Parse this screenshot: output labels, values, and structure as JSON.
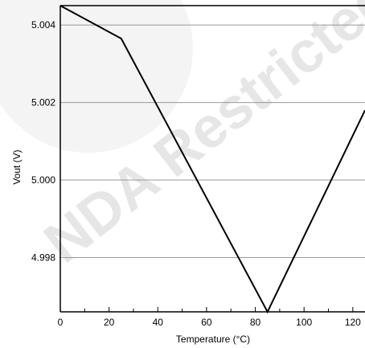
{
  "watermark": {
    "text": "NDA Restricted"
  },
  "chart_data": {
    "type": "line",
    "xlabel": "Temperature (°C)",
    "ylabel": "Vout (V)",
    "xlim": [
      0,
      125
    ],
    "ylim": [
      4.9966,
      5.0045
    ],
    "x_ticks": [
      0,
      20,
      40,
      60,
      80,
      100,
      120
    ],
    "x_tick_labels": [
      "0",
      "20",
      "40",
      "60",
      "80",
      "100",
      "120"
    ],
    "y_ticks": [
      4.998,
      5.0,
      5.002,
      5.004
    ],
    "y_tick_labels": [
      "4.998",
      "5.000",
      "5.002",
      "5.004"
    ],
    "grid": {
      "horizontal": true,
      "vertical": false
    },
    "series": [
      {
        "x": [
          0,
          25,
          85,
          125
        ],
        "y": [
          5.0045,
          5.00365,
          4.9966,
          5.0018
        ]
      }
    ]
  }
}
